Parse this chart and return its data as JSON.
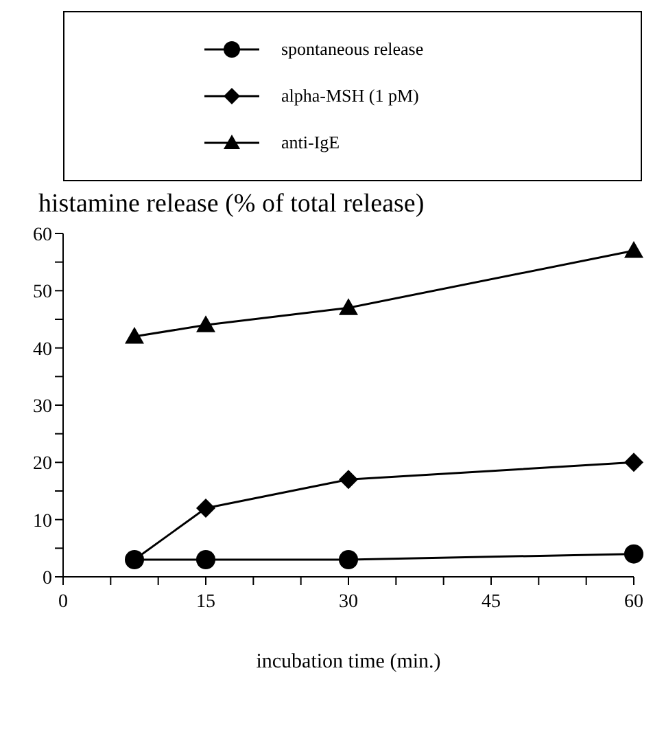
{
  "chart_data": {
    "type": "line",
    "ylabel": "histamine release (% of total release)",
    "xlabel": "incubation time (min.)",
    "x": [
      7.5,
      15,
      30,
      60
    ],
    "series": [
      {
        "name": "spontaneous release",
        "color": "#000000",
        "marker": "circle",
        "values": [
          3,
          3,
          3,
          4
        ]
      },
      {
        "name": "alpha-MSH (1 pM)",
        "color": "#000000",
        "marker": "diamond",
        "values": [
          3,
          12,
          17,
          20
        ]
      },
      {
        "name": "anti-IgE",
        "color": "#000000",
        "marker": "triangle",
        "values": [
          42,
          44,
          47,
          57
        ]
      }
    ],
    "xlim": [
      0,
      60
    ],
    "xticks": [
      0,
      {
        "value": 5,
        "label": null
      },
      {
        "value": 10,
        "label": null
      },
      15,
      {
        "value": 20,
        "label": null
      },
      {
        "value": 25,
        "label": null
      },
      30,
      {
        "value": 35,
        "label": null
      },
      {
        "value": 40,
        "label": null
      },
      45,
      {
        "value": 50,
        "label": null
      },
      {
        "value": 55,
        "label": null
      },
      60
    ],
    "ylim": [
      0,
      60
    ],
    "yticks": [
      0,
      {
        "value": 5,
        "label": null
      },
      10,
      {
        "value": 15,
        "label": null
      },
      20,
      {
        "value": 25,
        "label": null
      },
      30,
      {
        "value": 35,
        "label": null
      },
      40,
      {
        "value": 45,
        "label": null
      },
      50,
      {
        "value": 55,
        "label": null
      },
      60
    ],
    "grid": false,
    "legend": "top",
    "line_style": "solid"
  }
}
